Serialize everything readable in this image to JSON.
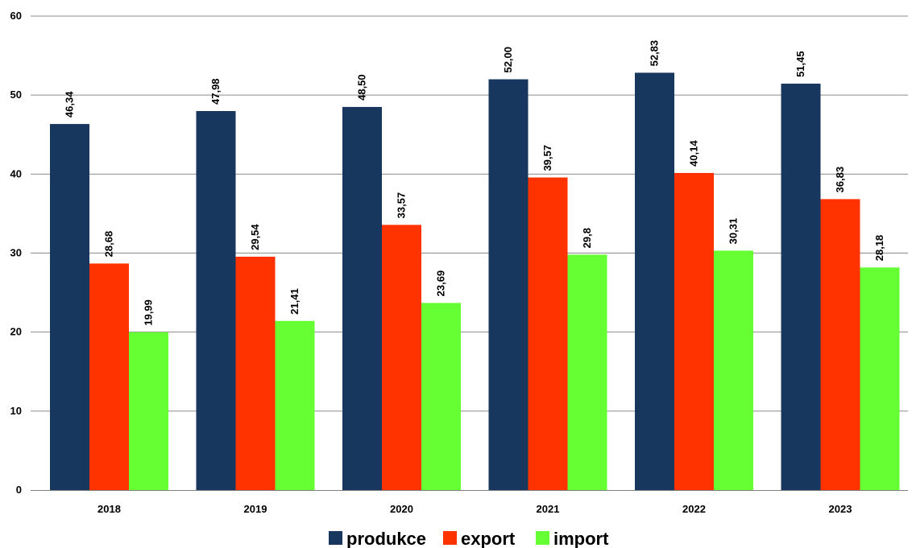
{
  "chart_data": {
    "type": "bar",
    "categories": [
      "2018",
      "2019",
      "2020",
      "2021",
      "2022",
      "2023"
    ],
    "series": [
      {
        "name": "produkce",
        "color": "#17375e",
        "values": [
          46.34,
          47.98,
          48.5,
          52.0,
          52.83,
          51.45
        ],
        "labels": [
          "46,34",
          "47,98",
          "48,50",
          "52,00",
          "52,83",
          "51,45"
        ]
      },
      {
        "name": "export",
        "color": "#ff3300",
        "values": [
          28.68,
          29.54,
          33.57,
          39.57,
          40.14,
          36.83
        ],
        "labels": [
          "28,68",
          "29,54",
          "33,57",
          "39,57",
          "40,14",
          "36,83"
        ]
      },
      {
        "name": "import",
        "color": "#66ff33",
        "values": [
          19.99,
          21.41,
          23.69,
          29.8,
          30.31,
          28.18
        ],
        "labels": [
          "19,99",
          "21,41",
          "23,69",
          "29,8",
          "30,31",
          "28,18"
        ]
      }
    ],
    "ylim": [
      0,
      60
    ],
    "yticks": [
      0,
      10,
      20,
      30,
      40,
      50,
      60
    ],
    "grid": true,
    "legend_position": "bottom"
  }
}
